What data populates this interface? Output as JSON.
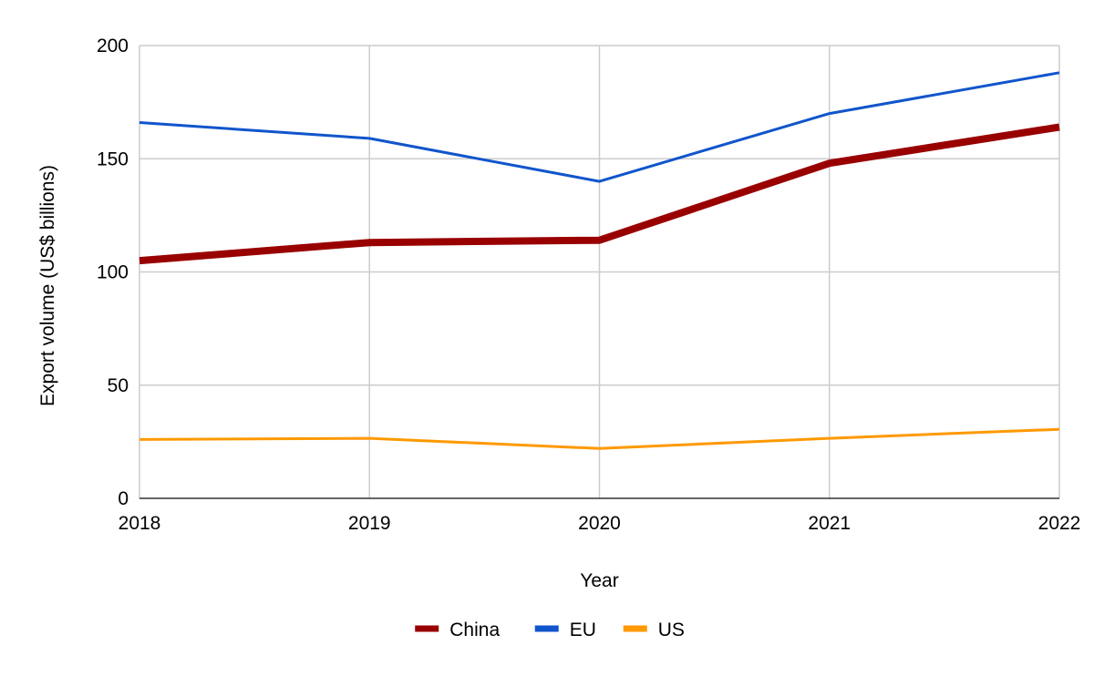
{
  "chart_data": {
    "type": "line",
    "title": "",
    "xlabel": "Year",
    "ylabel": "Export volume (US$ billions)",
    "x": [
      "2018",
      "2019",
      "2020",
      "2021",
      "2022"
    ],
    "ylim": [
      0,
      200
    ],
    "yticks": [
      "0",
      "50",
      "100",
      "150",
      "200"
    ],
    "grid": true,
    "legend_position": "bottom",
    "series": [
      {
        "name": "China",
        "color": "#990000",
        "values": [
          105,
          113,
          114,
          148,
          164
        ]
      },
      {
        "name": "EU",
        "color": "#1155cc",
        "values": [
          166,
          159,
          140,
          170,
          188
        ]
      },
      {
        "name": "US",
        "color": "#ff9900",
        "values": [
          26,
          26.5,
          22,
          26.5,
          30.5
        ]
      }
    ]
  }
}
